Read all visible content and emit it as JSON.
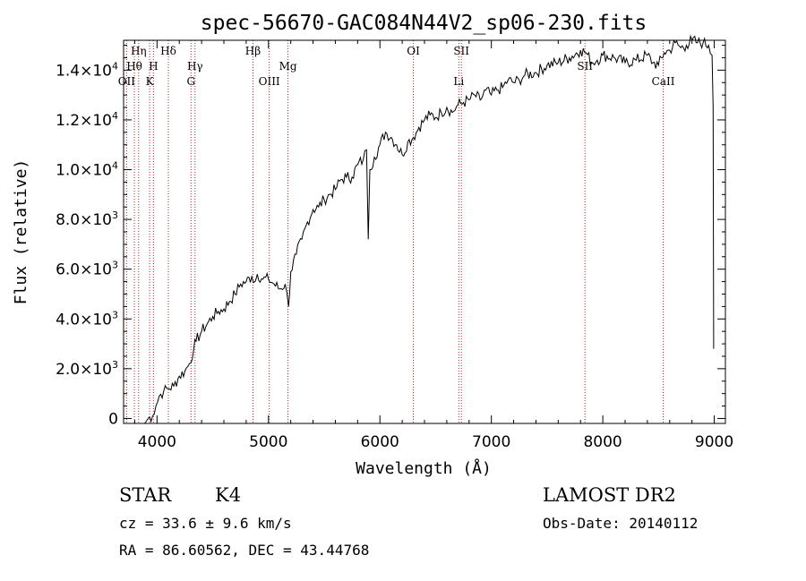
{
  "chart_data": {
    "type": "line",
    "title": "spec-56670-GAC084N44V2_sp06-230.fits",
    "xlabel": "Wavelength (Å)",
    "ylabel": "Flux (relative)",
    "xlim": [
      3700,
      9100
    ],
    "ylim": [
      -200,
      15200
    ],
    "x_ticks": [
      4000,
      5000,
      6000,
      7000,
      8000,
      9000
    ],
    "x_tick_labels": [
      "4000",
      "5000",
      "6000",
      "7000",
      "8000",
      "9000"
    ],
    "y_ticks": [
      0,
      2000,
      4000,
      6000,
      8000,
      10000,
      12000,
      14000
    ],
    "y_tick_labels": [
      {
        "mant": "0",
        "exp": ""
      },
      {
        "mant": "2.0×10",
        "exp": "3"
      },
      {
        "mant": "4.0×10",
        "exp": "3"
      },
      {
        "mant": "6.0×10",
        "exp": "3"
      },
      {
        "mant": "8.0×10",
        "exp": "3"
      },
      {
        "mant": "1.0×10",
        "exp": "4"
      },
      {
        "mant": "1.2×10",
        "exp": "4"
      },
      {
        "mant": "1.4×10",
        "exp": "4"
      }
    ],
    "grid": false,
    "series": [
      {
        "color": "#000000",
        "x": [
          3890,
          3920,
          3960,
          3990,
          4020,
          4060,
          4100,
          4150,
          4200,
          4250,
          4290,
          4330,
          4350,
          4400,
          4450,
          4500,
          4550,
          4600,
          4650,
          4700,
          4750,
          4800,
          4850,
          4880,
          4900,
          4950,
          5000,
          5050,
          5100,
          5150,
          5180,
          5200,
          5250,
          5300,
          5350,
          5400,
          5450,
          5500,
          5550,
          5600,
          5650,
          5700,
          5750,
          5800,
          5850,
          5880,
          5895,
          5910,
          5950,
          6000,
          6050,
          6100,
          6150,
          6200,
          6250,
          6300,
          6350,
          6400,
          6450,
          6500,
          6550,
          6600,
          6650,
          6700,
          6750,
          6800,
          6850,
          6900,
          6950,
          7000,
          7050,
          7100,
          7150,
          7200,
          7250,
          7300,
          7400,
          7500,
          7600,
          7700,
          7800,
          7850,
          7900,
          7950,
          8000,
          8100,
          8200,
          8300,
          8400,
          8450,
          8500,
          8550,
          8600,
          8650,
          8700,
          8750,
          8800,
          8850,
          8900,
          8950,
          8980,
          8990,
          8995
        ],
        "y": [
          -200,
          0,
          100,
          500,
          900,
          1100,
          1200,
          1300,
          1700,
          1900,
          2200,
          2800,
          3100,
          3500,
          3800,
          4100,
          4300,
          4400,
          4700,
          5000,
          5400,
          5500,
          5700,
          5500,
          5800,
          5600,
          5600,
          5400,
          5200,
          5400,
          4500,
          5900,
          6600,
          7200,
          7900,
          8400,
          8500,
          8800,
          9000,
          9200,
          9600,
          9700,
          9700,
          10200,
          10400,
          10800,
          7200,
          10000,
          10500,
          11000,
          11500,
          11300,
          11000,
          10600,
          11100,
          11300,
          11700,
          12000,
          12200,
          12100,
          12300,
          12500,
          12300,
          12600,
          12700,
          12800,
          13000,
          12800,
          13200,
          13000,
          13200,
          13300,
          13600,
          13500,
          13600,
          13800,
          13900,
          14200,
          14300,
          14500,
          14800,
          14700,
          14300,
          14400,
          14600,
          14500,
          14300,
          14400,
          14600,
          14300,
          14200,
          14700,
          14800,
          15100,
          14900,
          15000,
          15200,
          15100,
          15100,
          15000,
          14600,
          12500,
          2800
        ]
      }
    ],
    "spectral_lines": [
      {
        "name": "Hη",
        "x": 3835,
        "row": 0
      },
      {
        "name": "Hθ",
        "x": 3797,
        "row": 1
      },
      {
        "name": "OII",
        "x": 3727,
        "row": 2
      },
      {
        "name": "Hδ",
        "x": 4102,
        "row": 0
      },
      {
        "name": "H",
        "x": 3968,
        "row": 1
      },
      {
        "name": "K",
        "x": 3934,
        "row": 2
      },
      {
        "name": "Hγ",
        "x": 4341,
        "row": 1
      },
      {
        "name": "G",
        "x": 4305,
        "row": 2
      },
      {
        "name": "Hβ",
        "x": 4861,
        "row": 0
      },
      {
        "name": "Mg",
        "x": 5175,
        "row": 1
      },
      {
        "name": "OIII",
        "x": 5007,
        "row": 2
      },
      {
        "name": "OI",
        "x": 6300,
        "row": 0
      },
      {
        "name": "SII",
        "x": 6731,
        "row": 0
      },
      {
        "name": "Li",
        "x": 6708,
        "row": 2
      },
      {
        "name": "SII",
        "x": 7840,
        "row": 1
      },
      {
        "name": "CaII",
        "x": 8542,
        "row": 2
      }
    ]
  },
  "info": {
    "type_label": "STAR",
    "subclass": "K4",
    "survey": "LAMOST DR2",
    "cz": "cz = 33.6 ± 9.6 km/s",
    "obs_date": "Obs-Date: 20140112",
    "radec": "RA =  86.60562, DEC =  43.44768"
  }
}
